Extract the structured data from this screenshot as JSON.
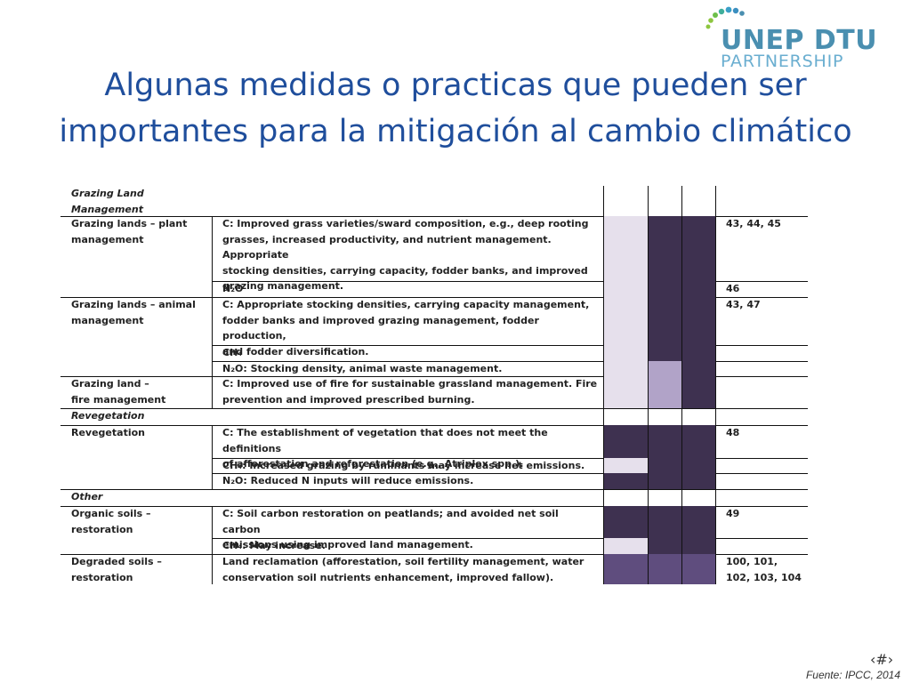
{
  "logo": {
    "line1": "UNEP DTU",
    "line2": "PARTNERSHIP"
  },
  "title": {
    "line1": "Algunas medidas o practicas que pueden ser",
    "line2": "importantes para la mitigación al cambio climático"
  },
  "colors": {
    "dark": "#3e3150",
    "light": "#e6e0ec",
    "medium": "#b1a3c8",
    "purple": "#5f4d7e",
    "title": "#1f4e9c"
  },
  "table": {
    "sections": [
      {
        "label": "Grazing Land\nManagement"
      },
      {
        "label": "Revegetation"
      },
      {
        "label": "Other"
      }
    ],
    "rows": [
      {
        "practice": "Grazing lands – plant\nmanagement",
        "measure": "C: Improved grass varieties/sward composition, e.g., deep rooting\ngrasses, increased productivity, and nutrient management. Appropriate\nstocking densities, carrying capacity, fodder banks, and improved\ngrazing management.",
        "refs": "43, 44, 45",
        "shades": [
          "light",
          "dark",
          "dark"
        ]
      },
      {
        "practice": "",
        "measure": "N₂O",
        "refs": "46",
        "shades": [
          "light",
          "dark",
          "dark"
        ]
      },
      {
        "practice": "Grazing lands – animal\nmanagement",
        "measure": "C: Appropriate stocking densities, carrying capacity management,\nfodder banks and improved grazing management, fodder production,\nand fodder diversification.",
        "refs": "43, 47",
        "shades": [
          "light",
          "dark",
          "dark"
        ]
      },
      {
        "practice": "",
        "measure": "CH₄",
        "refs": "",
        "shades": [
          "light",
          "dark",
          "dark"
        ]
      },
      {
        "practice": "",
        "measure": "N₂O: Stocking density, animal waste management.",
        "refs": "",
        "shades": [
          "light",
          "medium",
          "dark"
        ]
      },
      {
        "practice": "Grazing land –\nfire management",
        "measure": "C: Improved use of fire for sustainable grassland management. Fire\nprevention and improved prescribed burning.",
        "refs": "",
        "shades": [
          "light",
          "medium",
          "dark"
        ]
      },
      {
        "practice": "Revegetation",
        "measure": "C: The establishment of vegetation that does not meet the definitions\nof afforestation and reforestation (e.g., Atriplex spp.).",
        "refs": "48",
        "shades": [
          "dark",
          "dark",
          "dark"
        ]
      },
      {
        "practice": "",
        "measure": "CH₄: Increased grazing by ruminants may increase net emissions.",
        "refs": "",
        "shades": [
          "light",
          "dark",
          "dark"
        ]
      },
      {
        "practice": "",
        "measure": "N₂O: Reduced N inputs will reduce emissions.",
        "refs": "",
        "shades": [
          "dark",
          "dark",
          "dark"
        ]
      },
      {
        "practice": "Organic soils –\nrestoration",
        "measure": "C: Soil carbon restoration on peatlands; and avoided net soil carbon\nemissions using improved land management.",
        "refs": "49",
        "shades": [
          "dark",
          "dark",
          "dark"
        ]
      },
      {
        "practice": "",
        "measure": "CH₄: May increase.",
        "refs": "",
        "shades": [
          "light",
          "dark",
          "dark"
        ]
      },
      {
        "practice": "Degraded soils –\nrestoration",
        "measure": "Land reclamation (afforestation, soil fertility management, water\nconservation soil nutrients enhancement, improved fallow).",
        "refs": "100, 101,\n102, 103, 104",
        "shades": [
          "purple",
          "purple",
          "purple"
        ]
      }
    ]
  },
  "slide_marker": "‹#›",
  "source": "Fuente: IPCC, 2014"
}
